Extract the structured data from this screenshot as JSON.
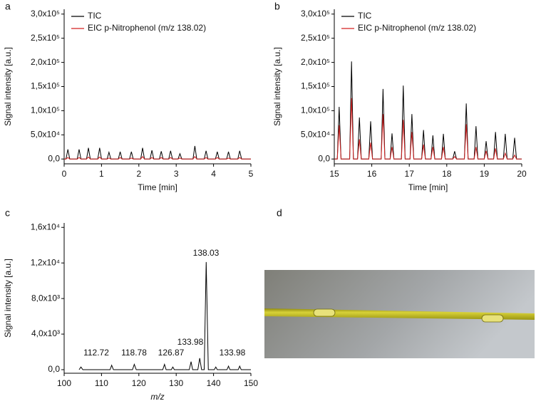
{
  "chart_data": [
    {
      "type": "line",
      "panel": "a",
      "xlabel": "Time [min]",
      "ylabel": "Signal intensity [a.u.]",
      "xlim": [
        0,
        5
      ],
      "xticks": [
        0,
        1,
        2,
        3,
        4,
        5
      ],
      "ylim": [
        -10000,
        310000
      ],
      "yticks": [
        {
          "value": 0,
          "label": "0,0"
        },
        {
          "value": 50000,
          "label": "5,0x10⁴"
        },
        {
          "value": 100000,
          "label": "1,0x10⁵"
        },
        {
          "value": 150000,
          "label": "1,5x10⁵"
        },
        {
          "value": 200000,
          "label": "2,0x10⁵"
        },
        {
          "value": 250000,
          "label": "2,5x10⁵"
        },
        {
          "value": 300000,
          "label": "3,0x10⁵"
        }
      ],
      "legend": "upper left",
      "x": [
        0,
        0.05,
        0.1,
        0.15,
        0.35,
        0.4,
        0.45,
        0.6,
        0.65,
        0.7,
        0.9,
        0.95,
        1.0,
        1.15,
        1.2,
        1.25,
        1.45,
        1.5,
        1.55,
        1.75,
        1.8,
        1.85,
        2.05,
        2.1,
        2.15,
        2.3,
        2.35,
        2.4,
        2.55,
        2.6,
        2.65,
        2.8,
        2.85,
        2.9,
        3.05,
        3.1,
        3.15,
        3.45,
        3.5,
        3.55,
        3.75,
        3.8,
        3.85,
        4.05,
        4.1,
        4.15,
        4.35,
        4.4,
        4.45,
        4.65,
        4.7,
        4.75,
        5
      ],
      "series": [
        {
          "name": "TIC",
          "color": "#000000",
          "values": [
            0,
            0,
            20000,
            0,
            0,
            20000,
            0,
            0,
            23000,
            0,
            0,
            23000,
            0,
            0,
            14000,
            0,
            0,
            15000,
            0,
            0,
            15000,
            0,
            0,
            23000,
            0,
            0,
            18000,
            0,
            0,
            16000,
            0,
            0,
            17000,
            0,
            0,
            11000,
            0,
            0,
            27000,
            0,
            0,
            17000,
            0,
            0,
            15000,
            0,
            0,
            15000,
            0,
            0,
            17000,
            0,
            0
          ]
        },
        {
          "name": "EIC p-Nitrophenol (m/z 138.02)",
          "color": "#d42020",
          "values": [
            0,
            0,
            3000,
            0,
            0,
            3000,
            0,
            0,
            4000,
            0,
            0,
            4000,
            0,
            0,
            2000,
            0,
            0,
            3000,
            0,
            0,
            2000,
            0,
            0,
            5000,
            0,
            0,
            3000,
            0,
            0,
            3000,
            0,
            0,
            3000,
            0,
            0,
            2000,
            0,
            0,
            5000,
            0,
            0,
            3000,
            0,
            0,
            3000,
            0,
            0,
            2000,
            0,
            0,
            3000,
            0,
            0
          ]
        }
      ]
    },
    {
      "type": "line",
      "panel": "b",
      "xlabel": "Time [min]",
      "ylabel": "Signal intensity [a.u.]",
      "xlim": [
        15,
        20
      ],
      "xticks": [
        15,
        16,
        17,
        18,
        19,
        20
      ],
      "ylim": [
        -10000,
        310000
      ],
      "yticks": [
        {
          "value": 0,
          "label": "0,0"
        },
        {
          "value": 50000,
          "label": "5,0x10⁴"
        },
        {
          "value": 100000,
          "label": "1,0x10⁵"
        },
        {
          "value": 150000,
          "label": "1,5x10⁵"
        },
        {
          "value": 200000,
          "label": "2,0x10⁵"
        },
        {
          "value": 250000,
          "label": "2,5x10⁵"
        },
        {
          "value": 300000,
          "label": "3,0x10⁵"
        }
      ],
      "legend": "upper left",
      "x": [
        15,
        15.08,
        15.13,
        15.18,
        15.41,
        15.46,
        15.51,
        15.62,
        15.67,
        15.72,
        15.92,
        15.97,
        16.02,
        16.25,
        16.3,
        16.35,
        16.49,
        16.54,
        16.59,
        16.79,
        16.84,
        16.89,
        17.02,
        17.07,
        17.12,
        17.33,
        17.38,
        17.43,
        17.58,
        17.63,
        17.68,
        17.86,
        17.91,
        17.96,
        18.16,
        18.21,
        18.26,
        18.47,
        18.52,
        18.57,
        18.73,
        18.78,
        18.83,
        19.0,
        19.05,
        19.1,
        19.25,
        19.3,
        19.35,
        19.51,
        19.56,
        19.61,
        19.76,
        19.81,
        19.86,
        20
      ],
      "series": [
        {
          "name": "TIC",
          "color": "#000000",
          "values": [
            0,
            0,
            108000,
            0,
            0,
            202000,
            0,
            0,
            86000,
            0,
            0,
            78000,
            0,
            0,
            145000,
            0,
            0,
            53000,
            0,
            0,
            152000,
            0,
            0,
            93000,
            0,
            0,
            60000,
            0,
            0,
            49000,
            0,
            0,
            52000,
            0,
            0,
            16000,
            0,
            0,
            115000,
            0,
            0,
            68000,
            0,
            0,
            37000,
            0,
            0,
            56000,
            0,
            0,
            52000,
            0,
            0,
            44000,
            0,
            0
          ]
        },
        {
          "name": "EIC p-Nitrophenol (m/z 138.02)",
          "color": "#d42020",
          "values": [
            0,
            0,
            70000,
            0,
            0,
            126000,
            0,
            0,
            41000,
            0,
            0,
            34000,
            0,
            0,
            93000,
            0,
            0,
            25000,
            0,
            0,
            81000,
            0,
            0,
            56000,
            0,
            0,
            30000,
            0,
            0,
            25000,
            0,
            0,
            25000,
            0,
            0,
            5000,
            0,
            0,
            72000,
            0,
            0,
            25000,
            0,
            0,
            17000,
            0,
            0,
            22000,
            0,
            0,
            12000,
            0,
            0,
            8000,
            0,
            0
          ]
        }
      ]
    },
    {
      "type": "line",
      "panel": "c",
      "xlabel": "m/z",
      "ylabel": "Signal intensity [a.u.]",
      "xlim": [
        100,
        150
      ],
      "xticks": [
        100,
        110,
        120,
        130,
        140,
        150
      ],
      "ylim": [
        -400,
        16500
      ],
      "yticks": [
        {
          "value": 0,
          "label": "0,0"
        },
        {
          "value": 4000,
          "label": "4,0x10³"
        },
        {
          "value": 8000,
          "label": "8,0x10³"
        },
        {
          "value": 12000,
          "label": "1,2x10⁴"
        },
        {
          "value": 16000,
          "label": "1,6x10⁴"
        }
      ],
      "x": [
        104,
        104.5,
        105,
        112.3,
        112.72,
        113.2,
        118.3,
        118.78,
        119.3,
        126.4,
        126.87,
        127.3,
        128.7,
        129.1,
        129.5,
        133.5,
        133.98,
        134.4,
        135.8,
        136.3,
        136.8,
        137.5,
        138.03,
        138.6,
        140.2,
        140.6,
        141.0,
        143.6,
        144.0,
        144.4,
        146.6,
        147.0,
        147.4,
        150
      ],
      "series": [
        {
          "color": "#000000",
          "values": [
            0,
            300,
            0,
            0,
            500,
            0,
            0,
            600,
            0,
            0,
            600,
            0,
            0,
            300,
            0,
            0,
            900,
            0,
            0,
            1300,
            0,
            0,
            12100,
            0,
            0,
            300,
            0,
            0,
            400,
            0,
            0,
            400,
            0,
            0
          ]
        }
      ],
      "annotations": [
        "112.72",
        "118.78",
        "126.87",
        "133.98",
        "138.03",
        "133.98"
      ]
    }
  ],
  "photo_panel": {
    "label": "d"
  }
}
